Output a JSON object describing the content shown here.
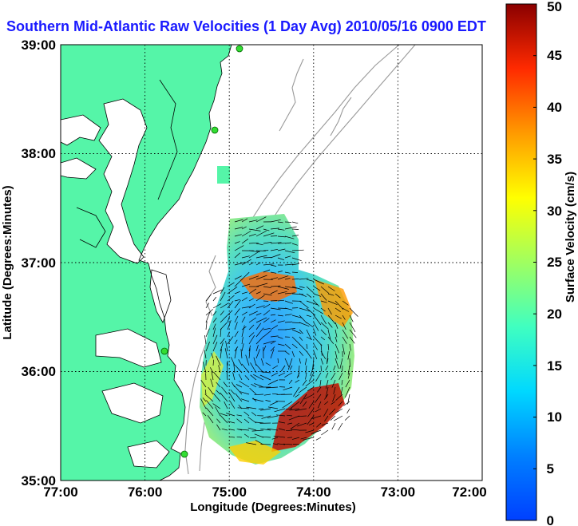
{
  "title": "Southern Mid-Atlantic Raw Velocities (1 Day Avg) 2010/05/16 0900 EDT",
  "map": {
    "xlabel": "Longitude (Degrees:Minutes)",
    "ylabel": "Latitude (Degrees:Minutes)",
    "lon_range": [
      -77,
      -72
    ],
    "lat_range": [
      35,
      39
    ],
    "lon_ticks": [
      "77:00",
      "76:00",
      "75:00",
      "74:00",
      "73:00",
      "72:00"
    ],
    "lat_ticks": [
      "35:00",
      "36:00",
      "37:00",
      "38:00",
      "39:00"
    ],
    "grid": "dotted",
    "land_color": "#55f5a8",
    "station_color": "#33dd33"
  },
  "colorbar": {
    "label": "Surface Velocity (cm/s)",
    "range": [
      0,
      50
    ],
    "ticks": [
      "0",
      "5",
      "10",
      "15",
      "20",
      "25",
      "30",
      "35",
      "40",
      "45",
      "50"
    ],
    "colormap": "jet"
  }
}
